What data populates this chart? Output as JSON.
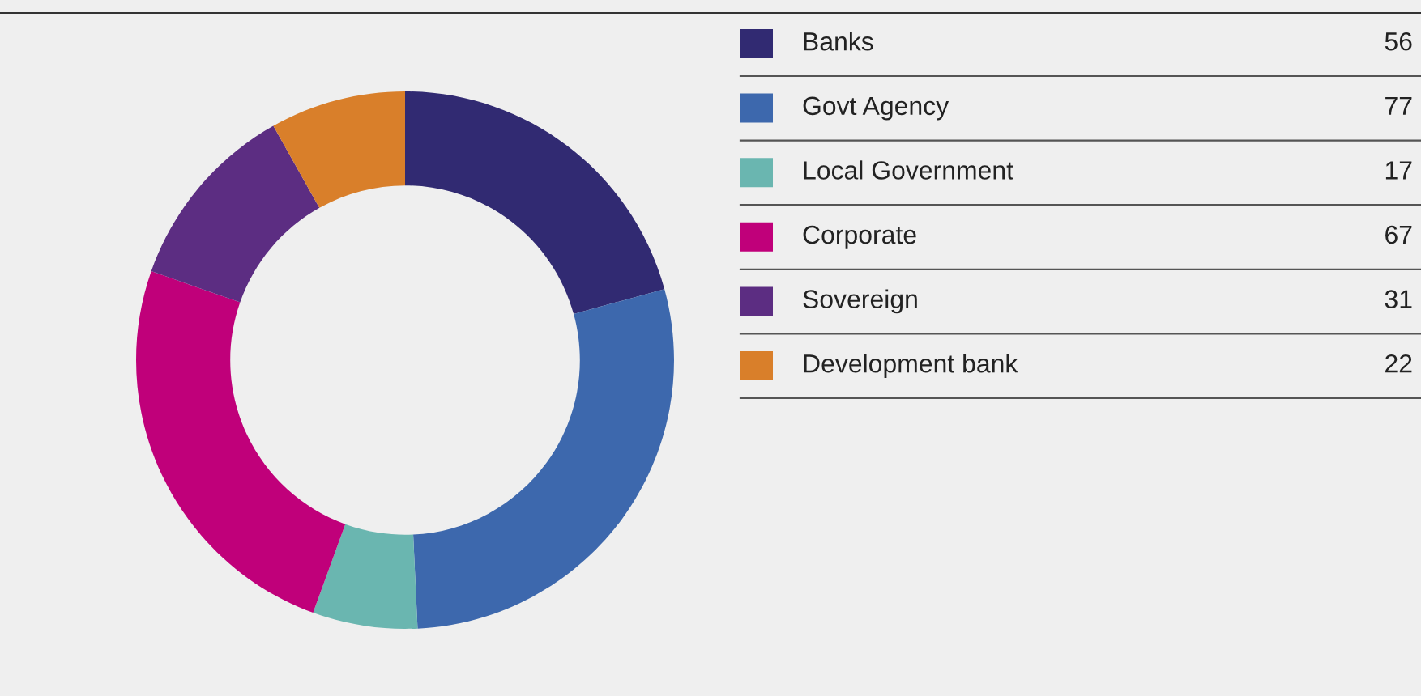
{
  "chart_data": {
    "type": "donut",
    "categories": [
      "Banks",
      "Govt Agency",
      "Local Government",
      "Corporate",
      "Sovereign",
      "Development bank"
    ],
    "values": [
      56,
      77,
      17,
      67,
      31,
      22
    ],
    "colors": [
      "#312a72",
      "#3d68ad",
      "#6ab6b0",
      "#c0007a",
      "#5c2d82",
      "#d97f2a"
    ],
    "data_labels": true,
    "legend": "right"
  }
}
